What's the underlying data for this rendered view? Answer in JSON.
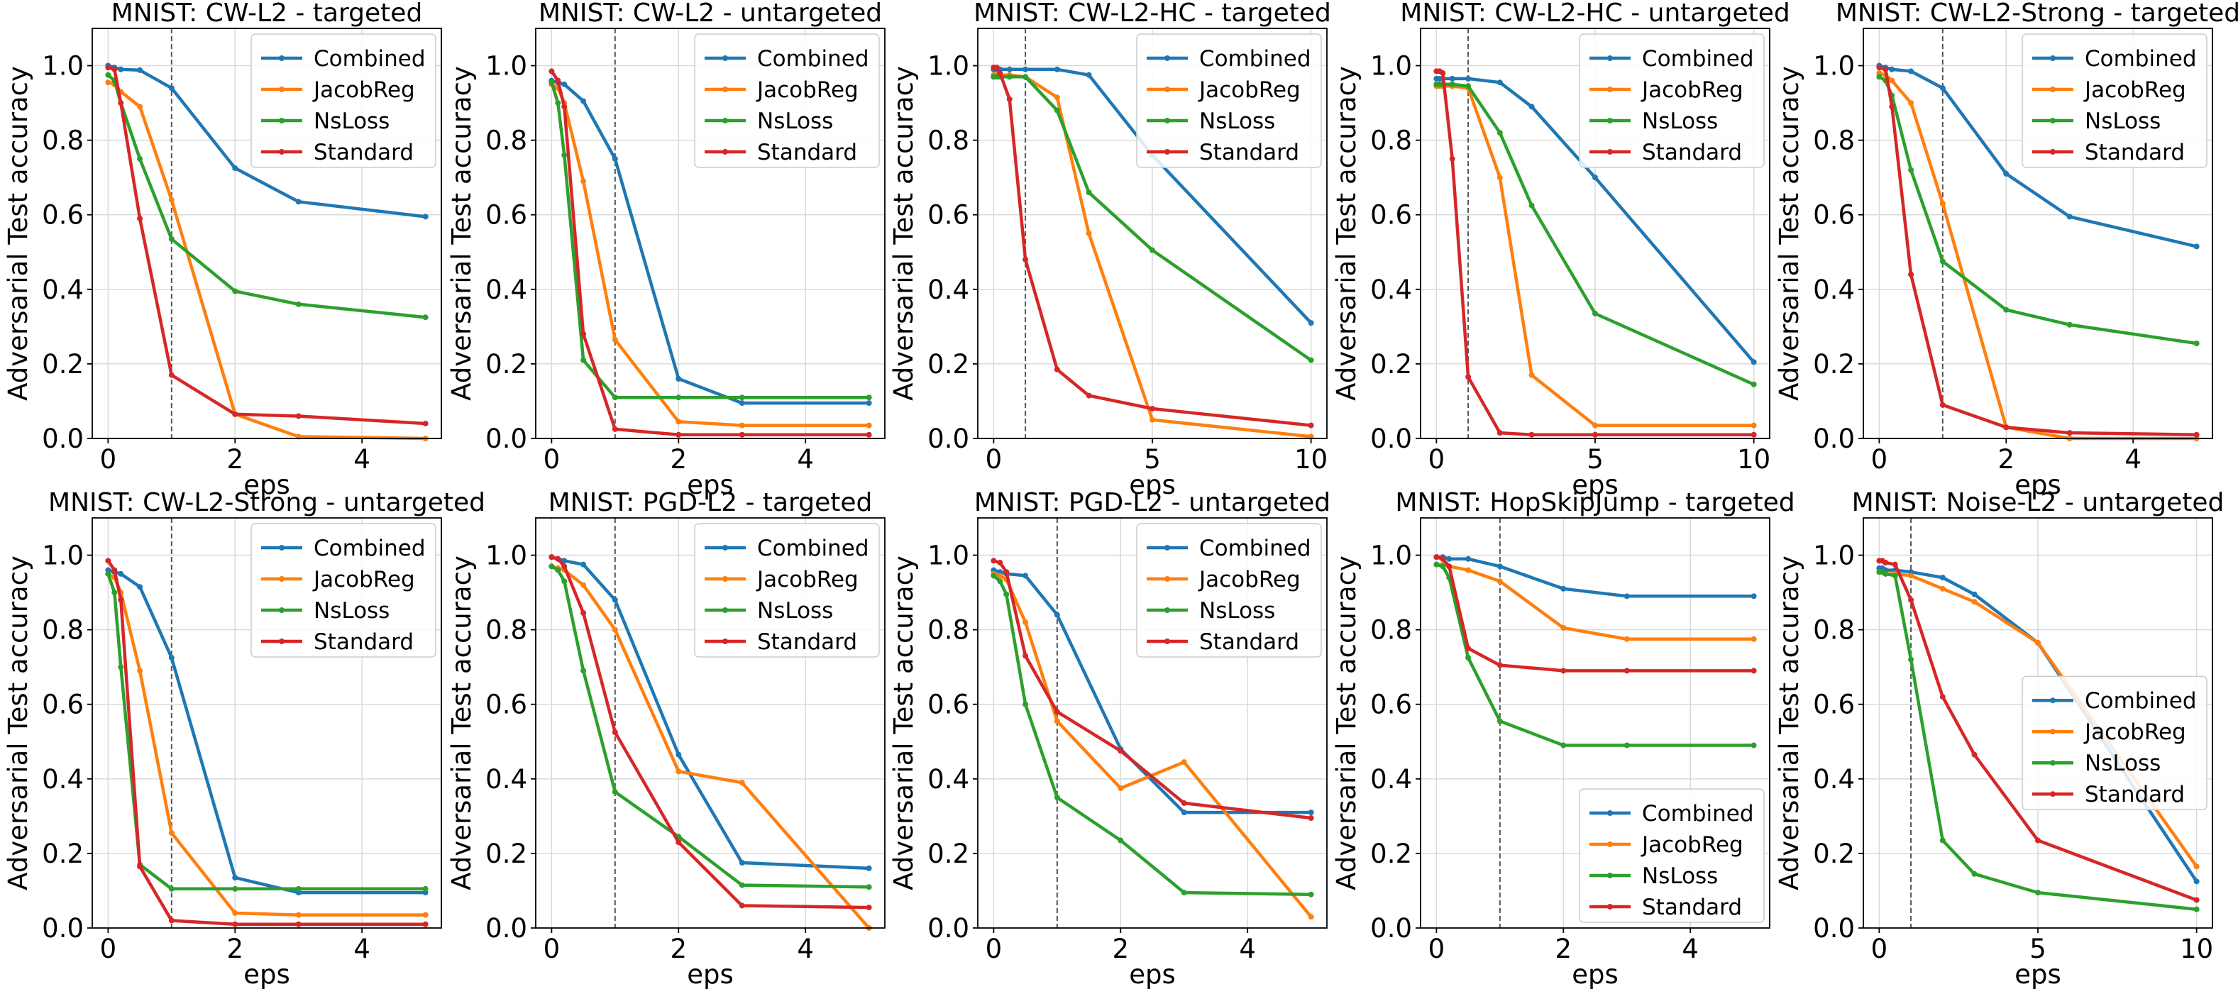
{
  "figure": {
    "caption": ""
  },
  "colors": {
    "Combined": "#1f77b4",
    "JacobReg": "#ff7f0e",
    "NsLoss": "#2ca02c",
    "Standard": "#d62728",
    "grid": "#d9d9d9",
    "vline": "#555555"
  },
  "chart_data": [
    {
      "type": "line",
      "title": "MNIST: CW-L2 - targeted",
      "xlabel": "eps",
      "ylabel": "Adversarial Test accuracy",
      "xlim": [
        -0.25,
        5.25
      ],
      "ylim": [
        0,
        1.1
      ],
      "xticks": [
        0,
        2,
        4
      ],
      "yticks": [
        0.0,
        0.2,
        0.4,
        0.6,
        0.8,
        1.0
      ],
      "x": [
        0,
        0.1,
        0.2,
        0.5,
        1,
        2,
        3,
        5
      ],
      "vline": 1,
      "legend": "top-right",
      "grid": true,
      "series": [
        {
          "name": "Combined",
          "values": [
            1.0,
            0.995,
            0.99,
            0.988,
            0.94,
            0.725,
            0.635,
            0.595
          ]
        },
        {
          "name": "JacobReg",
          "values": [
            0.955,
            0.95,
            0.93,
            0.89,
            0.64,
            0.065,
            0.005,
            0.0
          ]
        },
        {
          "name": "NsLoss",
          "values": [
            0.975,
            0.96,
            0.9,
            0.75,
            0.535,
            0.395,
            0.36,
            0.325
          ]
        },
        {
          "name": "Standard",
          "values": [
            0.995,
            0.99,
            0.9,
            0.59,
            0.17,
            0.065,
            0.06,
            0.04
          ]
        }
      ]
    },
    {
      "type": "line",
      "title": "MNIST: CW-L2 - untargeted",
      "xlabel": "eps",
      "ylabel": "Adversarial Test accuracy",
      "xlim": [
        -0.25,
        5.25
      ],
      "ylim": [
        0,
        1.1
      ],
      "xticks": [
        0,
        2,
        4
      ],
      "yticks": [
        0.0,
        0.2,
        0.4,
        0.6,
        0.8,
        1.0
      ],
      "x": [
        0,
        0.1,
        0.2,
        0.5,
        1,
        2,
        3,
        5
      ],
      "vline": 1,
      "legend": "top-right",
      "grid": true,
      "series": [
        {
          "name": "Combined",
          "values": [
            0.96,
            0.955,
            0.95,
            0.905,
            0.75,
            0.16,
            0.095,
            0.095
          ]
        },
        {
          "name": "JacobReg",
          "values": [
            0.95,
            0.94,
            0.9,
            0.69,
            0.265,
            0.045,
            0.035,
            0.035
          ]
        },
        {
          "name": "NsLoss",
          "values": [
            0.955,
            0.9,
            0.76,
            0.21,
            0.11,
            0.11,
            0.11,
            0.11
          ]
        },
        {
          "name": "Standard",
          "values": [
            0.985,
            0.96,
            0.89,
            0.28,
            0.025,
            0.01,
            0.01,
            0.01
          ]
        }
      ]
    },
    {
      "type": "line",
      "title": "MNIST: CW-L2-HC - targeted",
      "xlabel": "eps",
      "ylabel": "Adversarial Test accuracy",
      "xlim": [
        -0.5,
        10.5
      ],
      "ylim": [
        0,
        1.1
      ],
      "xticks": [
        0,
        5,
        10
      ],
      "yticks": [
        0.0,
        0.2,
        0.4,
        0.6,
        0.8,
        1.0
      ],
      "x": [
        0,
        0.1,
        0.2,
        0.5,
        1,
        2,
        3,
        5,
        10
      ],
      "vline": 1,
      "legend": "top-right",
      "grid": true,
      "series": [
        {
          "name": "Combined",
          "values": [
            0.99,
            0.99,
            0.99,
            0.99,
            0.99,
            0.99,
            0.975,
            0.76,
            0.31
          ]
        },
        {
          "name": "JacobReg",
          "values": [
            0.975,
            0.975,
            0.975,
            0.975,
            0.97,
            0.915,
            0.55,
            0.05,
            0.005
          ]
        },
        {
          "name": "NsLoss",
          "values": [
            0.97,
            0.97,
            0.97,
            0.97,
            0.97,
            0.88,
            0.66,
            0.505,
            0.21
          ]
        },
        {
          "name": "Standard",
          "values": [
            0.995,
            0.995,
            0.98,
            0.91,
            0.48,
            0.185,
            0.115,
            0.08,
            0.035
          ]
        }
      ]
    },
    {
      "type": "line",
      "title": "MNIST: CW-L2-HC - untargeted",
      "xlabel": "eps",
      "ylabel": "Adversarial Test accuracy",
      "xlim": [
        -0.5,
        10.5
      ],
      "ylim": [
        0,
        1.1
      ],
      "xticks": [
        0,
        5,
        10
      ],
      "yticks": [
        0.0,
        0.2,
        0.4,
        0.6,
        0.8,
        1.0
      ],
      "x": [
        0,
        0.1,
        0.2,
        0.5,
        1,
        2,
        3,
        5,
        10
      ],
      "vline": 1,
      "legend": "top-right",
      "grid": true,
      "series": [
        {
          "name": "Combined",
          "values": [
            0.965,
            0.965,
            0.965,
            0.965,
            0.965,
            0.955,
            0.89,
            0.7,
            0.205
          ]
        },
        {
          "name": "JacobReg",
          "values": [
            0.945,
            0.945,
            0.945,
            0.945,
            0.94,
            0.7,
            0.17,
            0.035,
            0.035
          ]
        },
        {
          "name": "NsLoss",
          "values": [
            0.95,
            0.95,
            0.95,
            0.95,
            0.945,
            0.82,
            0.625,
            0.335,
            0.145
          ]
        },
        {
          "name": "Standard",
          "values": [
            0.985,
            0.985,
            0.98,
            0.75,
            0.165,
            0.015,
            0.01,
            0.01,
            0.01
          ]
        }
      ]
    },
    {
      "type": "line",
      "title": "MNIST: CW-L2-Strong - targeted",
      "xlabel": "eps",
      "ylabel": "Adversarial Test accuracy",
      "xlim": [
        -0.25,
        5.25
      ],
      "ylim": [
        0,
        1.1
      ],
      "xticks": [
        0,
        2,
        4
      ],
      "yticks": [
        0.0,
        0.2,
        0.4,
        0.6,
        0.8,
        1.0
      ],
      "x": [
        0,
        0.1,
        0.2,
        0.5,
        1,
        2,
        3,
        5
      ],
      "vline": 1,
      "legend": "top-right",
      "grid": true,
      "series": [
        {
          "name": "Combined",
          "values": [
            1.0,
            0.995,
            0.99,
            0.985,
            0.94,
            0.71,
            0.595,
            0.515
          ]
        },
        {
          "name": "JacobReg",
          "values": [
            0.98,
            0.975,
            0.96,
            0.9,
            0.63,
            0.03,
            0.0,
            0.0
          ]
        },
        {
          "name": "NsLoss",
          "values": [
            0.97,
            0.96,
            0.92,
            0.72,
            0.475,
            0.345,
            0.305,
            0.255
          ]
        },
        {
          "name": "Standard",
          "values": [
            0.995,
            0.99,
            0.89,
            0.44,
            0.09,
            0.03,
            0.015,
            0.01
          ]
        }
      ]
    },
    {
      "type": "line",
      "title": "MNIST: CW-L2-Strong - untargeted",
      "xlabel": "eps",
      "ylabel": "Adversarial Test accuracy",
      "xlim": [
        -0.25,
        5.25
      ],
      "ylim": [
        0,
        1.1
      ],
      "xticks": [
        0,
        2,
        4
      ],
      "yticks": [
        0.0,
        0.2,
        0.4,
        0.6,
        0.8,
        1.0
      ],
      "x": [
        0,
        0.1,
        0.2,
        0.5,
        1,
        2,
        3,
        5
      ],
      "vline": 1,
      "legend": "top-right",
      "grid": true,
      "series": [
        {
          "name": "Combined",
          "values": [
            0.96,
            0.955,
            0.95,
            0.915,
            0.725,
            0.135,
            0.095,
            0.095
          ]
        },
        {
          "name": "JacobReg",
          "values": [
            0.95,
            0.94,
            0.9,
            0.69,
            0.255,
            0.04,
            0.035,
            0.035
          ]
        },
        {
          "name": "NsLoss",
          "values": [
            0.95,
            0.9,
            0.7,
            0.17,
            0.105,
            0.105,
            0.105,
            0.105
          ]
        },
        {
          "name": "Standard",
          "values": [
            0.985,
            0.96,
            0.88,
            0.165,
            0.02,
            0.01,
            0.01,
            0.01
          ]
        }
      ]
    },
    {
      "type": "line",
      "title": "MNIST: PGD-L2 - targeted",
      "xlabel": "eps",
      "ylabel": "Adversarial Test accuracy",
      "xlim": [
        -0.25,
        5.25
      ],
      "ylim": [
        0,
        1.1
      ],
      "xticks": [
        0,
        2,
        4
      ],
      "yticks": [
        0.0,
        0.2,
        0.4,
        0.6,
        0.8,
        1.0
      ],
      "x": [
        0,
        0.1,
        0.2,
        0.5,
        1,
        2,
        3,
        5
      ],
      "vline": 1,
      "legend": "top-right",
      "grid": true,
      "series": [
        {
          "name": "Combined",
          "values": [
            0.995,
            0.99,
            0.985,
            0.975,
            0.88,
            0.465,
            0.175,
            0.16
          ]
        },
        {
          "name": "JacobReg",
          "values": [
            0.97,
            0.965,
            0.96,
            0.92,
            0.8,
            0.42,
            0.39,
            0.0
          ]
        },
        {
          "name": "NsLoss",
          "values": [
            0.97,
            0.96,
            0.93,
            0.69,
            0.365,
            0.245,
            0.115,
            0.11
          ]
        },
        {
          "name": "Standard",
          "values": [
            0.995,
            0.99,
            0.97,
            0.845,
            0.525,
            0.23,
            0.06,
            0.055
          ]
        }
      ]
    },
    {
      "type": "line",
      "title": "MNIST: PGD-L2 - untargeted",
      "xlabel": "eps",
      "ylabel": "Adversarial Test accuracy",
      "xlim": [
        -0.25,
        5.25
      ],
      "ylim": [
        0,
        1.1
      ],
      "xticks": [
        0,
        2,
        4
      ],
      "yticks": [
        0.0,
        0.2,
        0.4,
        0.6,
        0.8,
        1.0
      ],
      "x": [
        0,
        0.1,
        0.2,
        0.5,
        1,
        2,
        3,
        5
      ],
      "vline": 1,
      "legend": "top-right",
      "grid": true,
      "series": [
        {
          "name": "Combined",
          "values": [
            0.96,
            0.955,
            0.95,
            0.945,
            0.84,
            0.48,
            0.31,
            0.31
          ]
        },
        {
          "name": "JacobReg",
          "values": [
            0.95,
            0.945,
            0.935,
            0.82,
            0.555,
            0.375,
            0.445,
            0.03
          ]
        },
        {
          "name": "NsLoss",
          "values": [
            0.945,
            0.93,
            0.895,
            0.6,
            0.35,
            0.235,
            0.095,
            0.09
          ]
        },
        {
          "name": "Standard",
          "values": [
            0.985,
            0.98,
            0.955,
            0.73,
            0.58,
            0.475,
            0.335,
            0.295
          ]
        }
      ]
    },
    {
      "type": "line",
      "title": "MNIST: HopSkipJump - targeted",
      "xlabel": "eps",
      "ylabel": "Adversarial Test accuracy",
      "xlim": [
        -0.25,
        5.25
      ],
      "ylim": [
        0,
        1.1
      ],
      "xticks": [
        0,
        2,
        4
      ],
      "yticks": [
        0.0,
        0.2,
        0.4,
        0.6,
        0.8,
        1.0
      ],
      "x": [
        0,
        0.1,
        0.2,
        0.5,
        1,
        2,
        3,
        5
      ],
      "vline": 1,
      "legend": "bottom-right",
      "grid": true,
      "series": [
        {
          "name": "Combined",
          "values": [
            0.995,
            0.995,
            0.99,
            0.99,
            0.97,
            0.91,
            0.89,
            0.89
          ]
        },
        {
          "name": "JacobReg",
          "values": [
            0.975,
            0.975,
            0.97,
            0.96,
            0.93,
            0.805,
            0.775,
            0.775
          ]
        },
        {
          "name": "NsLoss",
          "values": [
            0.975,
            0.97,
            0.94,
            0.725,
            0.555,
            0.49,
            0.49,
            0.49
          ]
        },
        {
          "name": "Standard",
          "values": [
            0.995,
            0.99,
            0.97,
            0.75,
            0.705,
            0.69,
            0.69,
            0.69
          ]
        }
      ]
    },
    {
      "type": "line",
      "title": "MNIST: Noise-L2 - untargeted",
      "xlabel": "eps",
      "ylabel": "Adversarial Test accuracy",
      "xlim": [
        -0.5,
        10.5
      ],
      "ylim": [
        0,
        1.1
      ],
      "xticks": [
        0,
        5,
        10
      ],
      "yticks": [
        0.0,
        0.2,
        0.4,
        0.6,
        0.8,
        1.0
      ],
      "x": [
        0,
        0.1,
        0.2,
        0.5,
        1,
        2,
        3,
        5,
        10
      ],
      "vline": 1,
      "legend": "center-right",
      "grid": true,
      "series": [
        {
          "name": "Combined",
          "values": [
            0.965,
            0.965,
            0.96,
            0.96,
            0.955,
            0.94,
            0.895,
            0.765,
            0.125
          ]
        },
        {
          "name": "JacobReg",
          "values": [
            0.955,
            0.955,
            0.95,
            0.95,
            0.945,
            0.91,
            0.875,
            0.765,
            0.165
          ]
        },
        {
          "name": "NsLoss",
          "values": [
            0.955,
            0.955,
            0.95,
            0.945,
            0.72,
            0.235,
            0.145,
            0.095,
            0.05
          ]
        },
        {
          "name": "Standard",
          "values": [
            0.985,
            0.985,
            0.98,
            0.975,
            0.88,
            0.62,
            0.465,
            0.235,
            0.075
          ]
        }
      ]
    }
  ]
}
